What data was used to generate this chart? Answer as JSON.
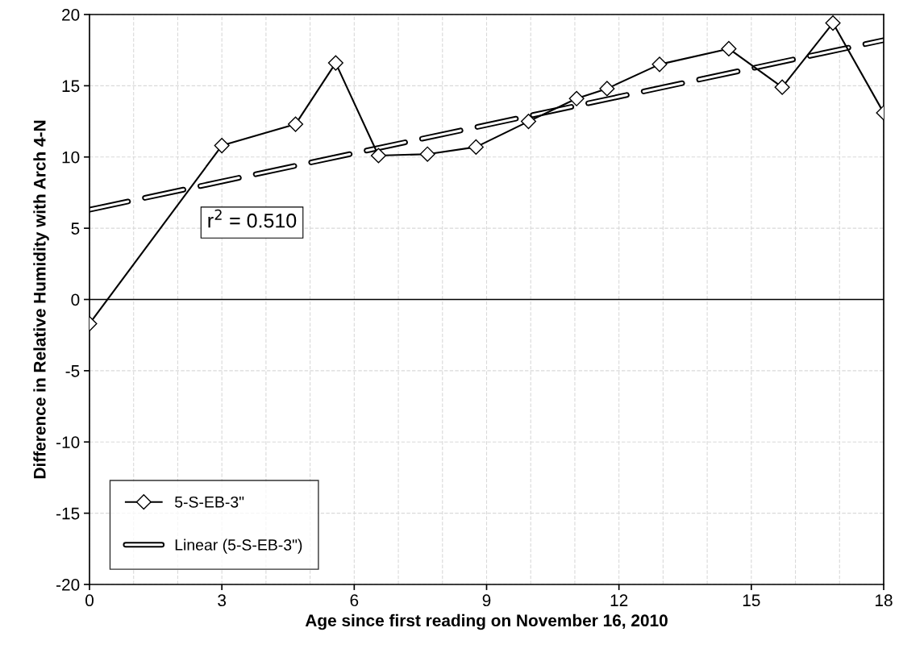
{
  "chart_data": {
    "type": "line",
    "xlabel": "Age since first reading on November 16, 2010",
    "ylabel": "Difference in Relative Humidity with Arch 4-N",
    "xlim": [
      0,
      18
    ],
    "xticks": [
      0,
      3,
      6,
      9,
      12,
      15,
      18
    ],
    "ylim": [
      -20,
      20
    ],
    "yticks": [
      -20,
      -15,
      -10,
      -5,
      0,
      5,
      10,
      15,
      20
    ],
    "grid": true,
    "legend": "bottom left",
    "series": [
      {
        "name": "5-S-EB-3\"",
        "color": "#000000",
        "marker": "diamond",
        "line_style": "solid",
        "x": [
          0,
          3.0,
          4.67,
          5.58,
          6.55,
          7.66,
          8.76,
          9.95,
          11.04,
          11.73,
          12.92,
          14.49,
          15.7,
          16.85,
          18.0
        ],
        "values": [
          -1.7,
          10.8,
          12.3,
          16.6,
          10.1,
          10.2,
          10.7,
          12.5,
          14.1,
          14.8,
          16.5,
          17.6,
          14.9,
          19.4,
          13.1
        ]
      },
      {
        "name": "Linear (5-S-EB-3\")",
        "color": "#000000",
        "marker": "none",
        "line_style": "dashed",
        "x": [
          0,
          18
        ],
        "values": [
          6.3,
          18.2
        ]
      }
    ],
    "ref_lines": [
      {
        "axis": "y",
        "value": 0,
        "color": "#000000",
        "line_style": "solid"
      }
    ],
    "annotations": [
      "r$^{2}$ = 0.510"
    ]
  }
}
